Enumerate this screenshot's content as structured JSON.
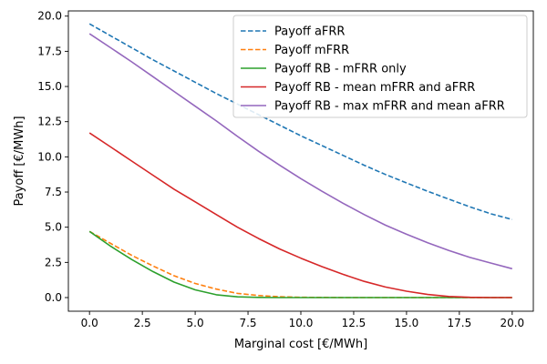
{
  "chart_data": {
    "type": "line",
    "title": "",
    "xlabel": "Marginal cost [€/MWh]",
    "ylabel": "Payoff [€/MWh]",
    "xlim": [
      -1.0,
      21.0
    ],
    "ylim": [
      -0.97,
      20.37
    ],
    "x_ticks": [
      0.0,
      2.5,
      5.0,
      7.5,
      10.0,
      12.5,
      15.0,
      17.5,
      20.0
    ],
    "x_tick_labels": [
      "0.0",
      "2.5",
      "5.0",
      "7.5",
      "10.0",
      "12.5",
      "15.0",
      "17.5",
      "20.0"
    ],
    "y_ticks": [
      0.0,
      2.5,
      5.0,
      7.5,
      10.0,
      12.5,
      15.0,
      17.5,
      20.0
    ],
    "y_tick_labels": [
      "0.0",
      "2.5",
      "5.0",
      "7.5",
      "10.0",
      "12.5",
      "15.0",
      "17.5",
      "20.0"
    ],
    "grid": false,
    "legend_position": "top-right",
    "x": [
      0,
      1,
      2,
      3,
      4,
      5,
      6,
      7,
      8,
      9,
      10,
      11,
      12,
      13,
      14,
      15,
      16,
      17,
      18,
      19,
      20
    ],
    "series": [
      {
        "name": "Payoff aFRR",
        "color": "#1f77b4",
        "dash": "dashed",
        "values": [
          19.45,
          18.6,
          17.75,
          16.9,
          16.1,
          15.3,
          14.5,
          13.75,
          13.0,
          12.25,
          11.5,
          10.8,
          10.1,
          9.4,
          8.75,
          8.15,
          7.55,
          7.0,
          6.45,
          5.95,
          5.55
        ]
      },
      {
        "name": "Payoff mFRR",
        "color": "#ff7f0e",
        "dash": "dashed",
        "values": [
          4.7,
          3.85,
          3.0,
          2.25,
          1.55,
          1.0,
          0.6,
          0.3,
          0.15,
          0.06,
          0.02,
          0.01,
          0.0,
          0.0,
          0.0,
          0.0,
          0.0,
          0.0,
          0.0,
          0.0,
          0.0
        ]
      },
      {
        "name": "Payoff RB - mFRR only",
        "color": "#2ca02c",
        "dash": "solid",
        "values": [
          4.7,
          3.65,
          2.7,
          1.85,
          1.1,
          0.55,
          0.2,
          0.05,
          0.01,
          0.0,
          0.0,
          0.0,
          0.0,
          0.0,
          0.0,
          0.0,
          0.0,
          0.0,
          0.0,
          0.0,
          0.0
        ]
      },
      {
        "name": "Payoff RB - mean mFRR and aFRR",
        "color": "#d62728",
        "dash": "solid",
        "values": [
          11.7,
          10.7,
          9.7,
          8.7,
          7.7,
          6.8,
          5.9,
          5.0,
          4.2,
          3.45,
          2.8,
          2.2,
          1.65,
          1.15,
          0.75,
          0.45,
          0.22,
          0.08,
          0.02,
          0.0,
          0.0
        ]
      },
      {
        "name": "Payoff RB - max mFRR and mean aFRR",
        "color": "#9467bd",
        "dash": "solid",
        "values": [
          18.75,
          17.75,
          16.75,
          15.7,
          14.65,
          13.6,
          12.55,
          11.45,
          10.4,
          9.4,
          8.45,
          7.55,
          6.7,
          5.9,
          5.15,
          4.5,
          3.9,
          3.35,
          2.85,
          2.45,
          2.05
        ]
      }
    ]
  }
}
